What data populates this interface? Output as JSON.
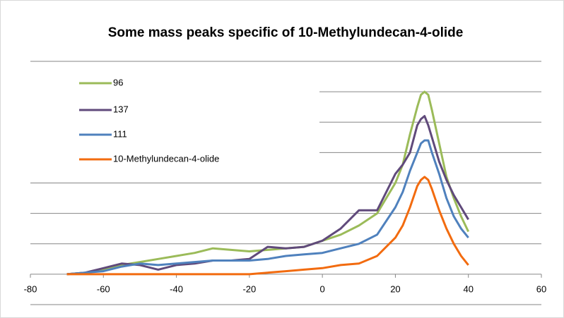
{
  "chart_data": {
    "type": "line",
    "title": "Some mass peaks specific of 10-Methylundecan-4-olide",
    "x": [
      -70,
      -65,
      -60,
      -55,
      -50,
      -45,
      -40,
      -35,
      -30,
      -25,
      -20,
      -15,
      -10,
      -5,
      0,
      5,
      10,
      15,
      20,
      22,
      24,
      26,
      27,
      28,
      29,
      30,
      32,
      34,
      36,
      38,
      40
    ],
    "series": [
      {
        "name": "96",
        "color": "#9bbb59",
        "values": [
          0,
          0.05,
          0.15,
          0.3,
          0.4,
          0.5,
          0.6,
          0.7,
          0.85,
          0.8,
          0.75,
          0.8,
          0.85,
          0.9,
          1.1,
          1.3,
          1.6,
          2.0,
          3.0,
          3.6,
          4.6,
          5.5,
          5.9,
          6.0,
          5.9,
          5.4,
          4.3,
          3.2,
          2.5,
          1.9,
          1.4
        ]
      },
      {
        "name": "137",
        "color": "#604a7b",
        "values": [
          0,
          0.05,
          0.2,
          0.35,
          0.3,
          0.15,
          0.3,
          0.35,
          0.45,
          0.45,
          0.5,
          0.9,
          0.85,
          0.9,
          1.1,
          1.5,
          2.1,
          2.1,
          3.3,
          3.6,
          4.0,
          4.9,
          5.1,
          5.2,
          4.9,
          4.5,
          3.7,
          3.1,
          2.6,
          2.2,
          1.8
        ]
      },
      {
        "name": "111",
        "color": "#4f81bd",
        "values": [
          0,
          0.05,
          0.1,
          0.25,
          0.35,
          0.3,
          0.35,
          0.4,
          0.45,
          0.45,
          0.45,
          0.5,
          0.6,
          0.65,
          0.7,
          0.85,
          1.0,
          1.3,
          2.2,
          2.7,
          3.4,
          4.0,
          4.3,
          4.4,
          4.4,
          4.0,
          3.3,
          2.5,
          1.9,
          1.5,
          1.2
        ]
      },
      {
        "name": "10-Methylundecan-4-olide",
        "color": "#f26b0f",
        "values": [
          0,
          0,
          0,
          0,
          0,
          0,
          0,
          0,
          0,
          0,
          0,
          0.05,
          0.1,
          0.15,
          0.2,
          0.3,
          0.35,
          0.6,
          1.2,
          1.6,
          2.2,
          2.9,
          3.1,
          3.2,
          3.1,
          2.8,
          2.1,
          1.5,
          1.0,
          0.6,
          0.3
        ]
      }
    ],
    "xlim": [
      -80,
      60
    ],
    "xticks": [
      -80,
      -60,
      -40,
      -20,
      0,
      20,
      40,
      60
    ],
    "ylim": [
      -1,
      7
    ],
    "yticks": [
      -1,
      0,
      1,
      2,
      3,
      4,
      5,
      6,
      7
    ],
    "show_ytick_labels": false,
    "grid": true,
    "legend": "upper-left"
  }
}
